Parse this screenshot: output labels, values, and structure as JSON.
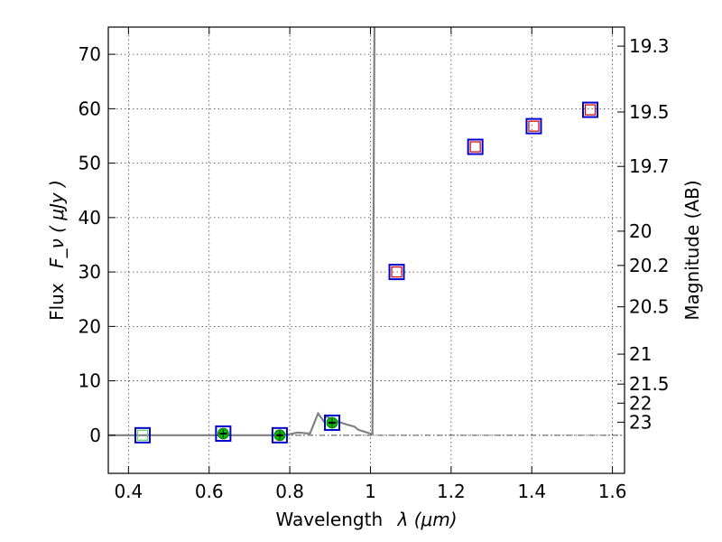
{
  "chart_data": {
    "type": "scatter",
    "xlabel_text": "Wavelength",
    "xlabel_math": "λ (μm)",
    "ylabel_text": "Flux",
    "ylabel_math": "F_ν ( μJy )",
    "ylabel_right": "Magnitude (AB)",
    "xlim": [
      0.35,
      1.63
    ],
    "ylim": [
      -7,
      75
    ],
    "xticks": [
      0.4,
      0.6,
      0.8,
      1.0,
      1.2,
      1.4,
      1.6
    ],
    "xtick_labels": [
      "0.4",
      "0.6",
      "0.8",
      "1",
      "1.2",
      "1.4",
      "1.6"
    ],
    "yticks": [
      0,
      10,
      20,
      30,
      40,
      50,
      60,
      70
    ],
    "ytick_labels": [
      "0",
      "10",
      "20",
      "30",
      "40",
      "50",
      "60",
      "70"
    ],
    "right_ticks": [
      {
        "label": "19.3",
        "flux": 71.5
      },
      {
        "label": "19.5",
        "flux": 59.4
      },
      {
        "label": "19.7",
        "flux": 49.4
      },
      {
        "label": "20",
        "flux": 37.5
      },
      {
        "label": "20.2",
        "flux": 31.2
      },
      {
        "label": "20.5",
        "flux": 23.6
      },
      {
        "label": "21",
        "flux": 14.9
      },
      {
        "label": "21.5",
        "flux": 9.4
      },
      {
        "label": "22",
        "flux": 5.9
      },
      {
        "label": "23",
        "flux": 2.4
      }
    ],
    "grid": true,
    "model_spectrum": {
      "x": [
        0.35,
        0.78,
        0.8,
        0.82,
        0.85,
        0.87,
        0.885,
        0.89,
        0.9,
        0.92,
        0.94,
        0.96,
        0.97,
        1.0,
        1.005,
        1.01
      ],
      "y": [
        0,
        0,
        0.2,
        0.5,
        0.3,
        4.0,
        2.5,
        3.6,
        3.0,
        2.5,
        2.0,
        1.6,
        1.0,
        0.3,
        0.2,
        75
      ]
    },
    "observed_box": {
      "color": "#0000cc",
      "x": [
        0.435,
        0.635,
        0.775,
        0.905,
        1.065,
        1.26,
        1.405,
        1.545
      ],
      "y": [
        0,
        0.3,
        0,
        2.3,
        30.0,
        53.0,
        56.8,
        59.8
      ]
    },
    "model_box": {
      "color": "#cc0000",
      "x": [
        1.065,
        1.26,
        1.405,
        1.545
      ],
      "y": [
        30.0,
        53.0,
        56.8,
        59.8
      ]
    },
    "detections": {
      "color": "#00bb00",
      "x": [
        0.635,
        0.775,
        0.905
      ],
      "y": [
        0.3,
        0,
        2.3
      ],
      "yerr": [
        0.8,
        0.8,
        0.8
      ]
    },
    "light_box": {
      "color": "#66cc66",
      "x": [
        0.435
      ],
      "y": [
        0
      ]
    }
  }
}
